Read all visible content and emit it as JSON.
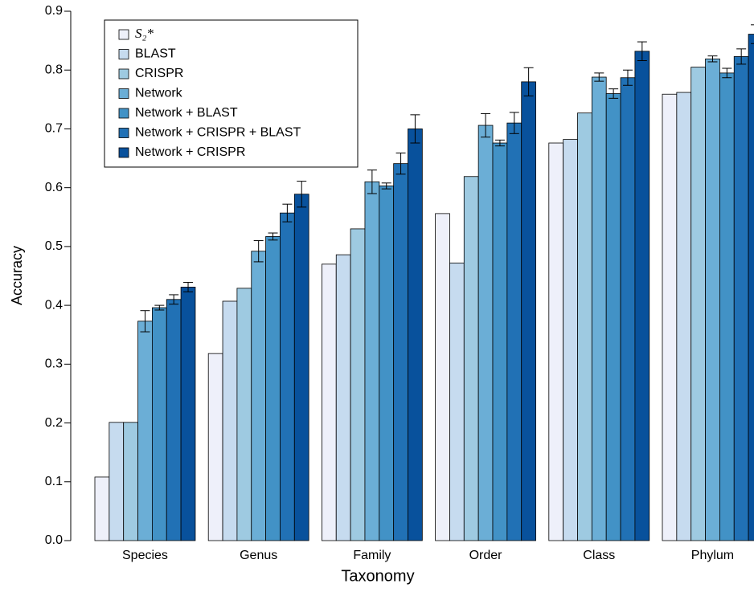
{
  "chart_data": {
    "type": "bar",
    "xlabel": "Taxonomy",
    "ylabel": "Accuracy",
    "categories": [
      "Species",
      "Genus",
      "Family",
      "Order",
      "Class",
      "Phylum"
    ],
    "ylim": [
      0,
      0.9
    ],
    "yticks": [
      {
        "value": 0,
        "label": "0.0"
      },
      0.1,
      0.2,
      0.3,
      0.4,
      0.5,
      0.6,
      0.7,
      0.8,
      0.9
    ],
    "legend": "upper left",
    "series": [
      {
        "name": "S₂*",
        "color": "#eef0fa",
        "values": [
          0.108,
          0.318,
          0.47,
          0.556,
          0.676,
          0.759
        ],
        "errors": [
          null,
          null,
          null,
          null,
          null,
          null
        ]
      },
      {
        "name": "BLAST",
        "color": "#c6dbef",
        "values": [
          0.201,
          0.407,
          0.486,
          0.472,
          0.682,
          0.762
        ],
        "errors": [
          null,
          null,
          null,
          null,
          null,
          null
        ]
      },
      {
        "name": "CRISPR",
        "color": "#9ecae1",
        "values": [
          0.201,
          0.429,
          0.53,
          0.619,
          0.727,
          0.805
        ],
        "errors": [
          null,
          null,
          null,
          null,
          null,
          null
        ]
      },
      {
        "name": "Network",
        "color": "#6baed6",
        "values": [
          0.373,
          0.492,
          0.61,
          0.706,
          0.788,
          0.819
        ],
        "errors": [
          0.018,
          0.018,
          0.02,
          0.02,
          0.007,
          0.005
        ]
      },
      {
        "name": "Network + BLAST",
        "color": "#4292c6",
        "values": [
          0.396,
          0.517,
          0.603,
          0.676,
          0.76,
          0.795
        ],
        "errors": [
          0.004,
          0.006,
          0.005,
          0.005,
          0.008,
          0.008
        ]
      },
      {
        "name": "Network + CRISPR + BLAST",
        "color": "#2171b5",
        "values": [
          0.41,
          0.557,
          0.641,
          0.71,
          0.787,
          0.823
        ],
        "errors": [
          0.008,
          0.015,
          0.018,
          0.018,
          0.013,
          0.013
        ]
      },
      {
        "name": "Network + CRISPR",
        "color": "#08519c",
        "values": [
          0.431,
          0.589,
          0.7,
          0.78,
          0.832,
          0.861
        ],
        "errors": [
          0.008,
          0.022,
          0.024,
          0.024,
          0.016,
          0.016
        ]
      }
    ]
  }
}
